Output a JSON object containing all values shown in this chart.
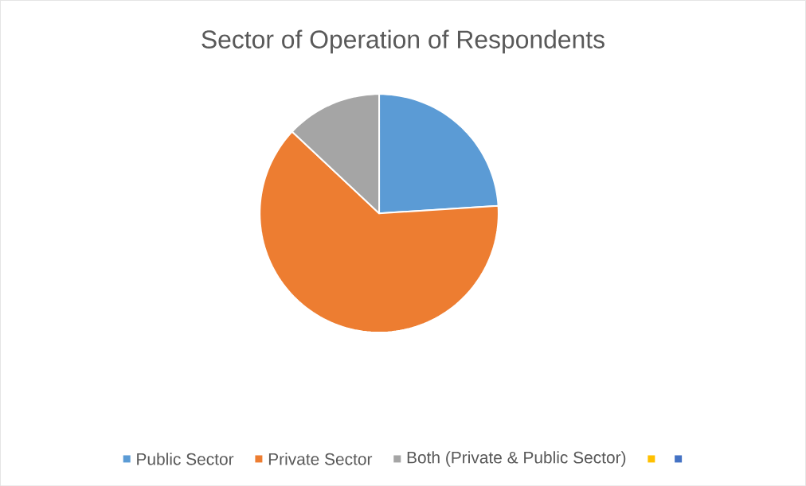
{
  "chart_data": {
    "type": "pie",
    "title": "Sector of Operation of Respondents",
    "categories": [
      "Public Sector",
      "Private Sector",
      "Both (Private & Public Sector)",
      null,
      null
    ],
    "values": [
      24,
      63,
      13,
      0,
      0
    ],
    "colors": [
      "#5b9bd5",
      "#ed7d31",
      "#a5a5a5",
      "#ffc000",
      "#4472c4"
    ],
    "legend": "bottom"
  }
}
